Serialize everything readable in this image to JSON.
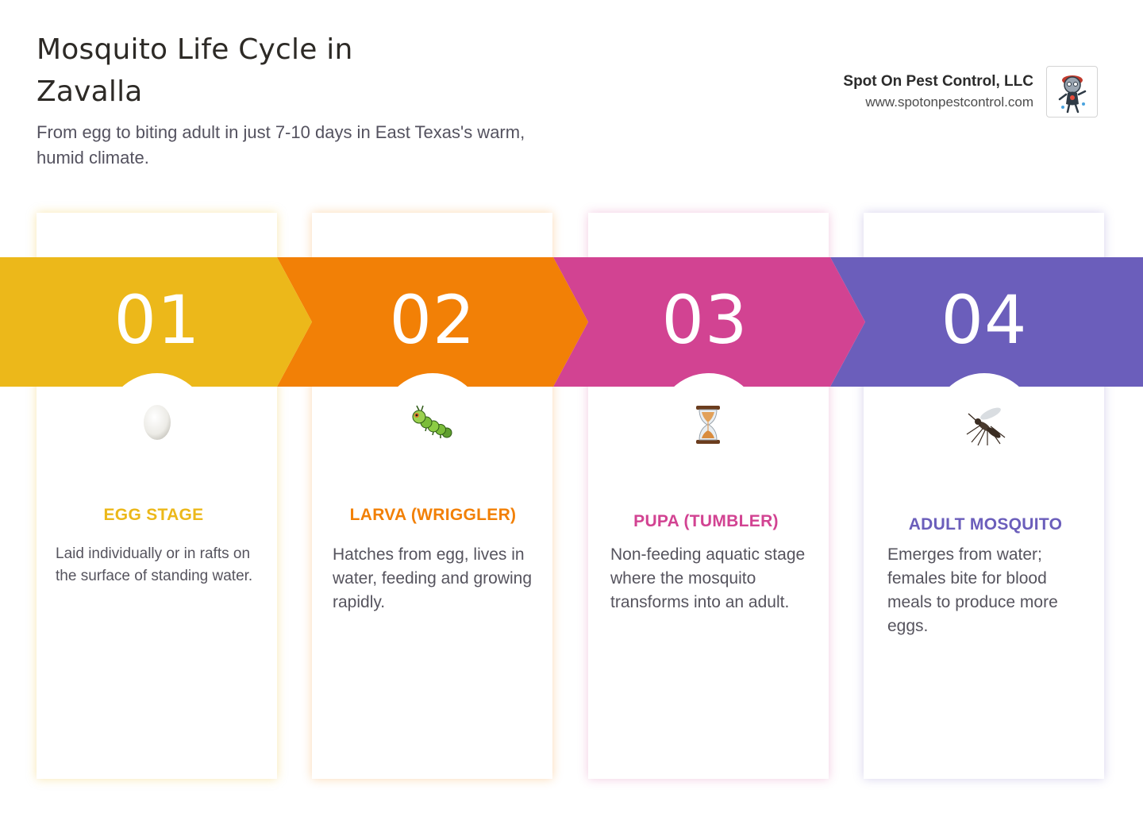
{
  "header": {
    "title": "Mosquito Life Cycle in Zavalla",
    "subtitle": "From egg to biting adult in just 7-10 days in East Texas's warm, humid climate."
  },
  "brand": {
    "name": "Spot On Pest Control, LLC",
    "url": "www.spotonpestcontrol.com",
    "logo_icon": "mascot-logo-icon"
  },
  "stages": [
    {
      "number": "01",
      "title": "EGG STAGE",
      "description": "Laid individually or in rafts on the surface of standing water.",
      "icon": "egg-icon",
      "color": "#ECB81A"
    },
    {
      "number": "02",
      "title": "LARVA (WRIGGLER)",
      "description": "Hatches from egg, lives in water, feeding and growing rapidly.",
      "icon": "caterpillar-icon",
      "color": "#F28006"
    },
    {
      "number": "03",
      "title": "PUPA (TUMBLER)",
      "description": "Non-feeding aquatic stage where the mosquito transforms into an adult.",
      "icon": "hourglass-icon",
      "color": "#D24392"
    },
    {
      "number": "04",
      "title": "ADULT MOSQUITO",
      "description": "Emerges from water; females bite for blood meals to produce more eggs.",
      "icon": "mosquito-icon",
      "color": "#6B5EBB"
    }
  ]
}
